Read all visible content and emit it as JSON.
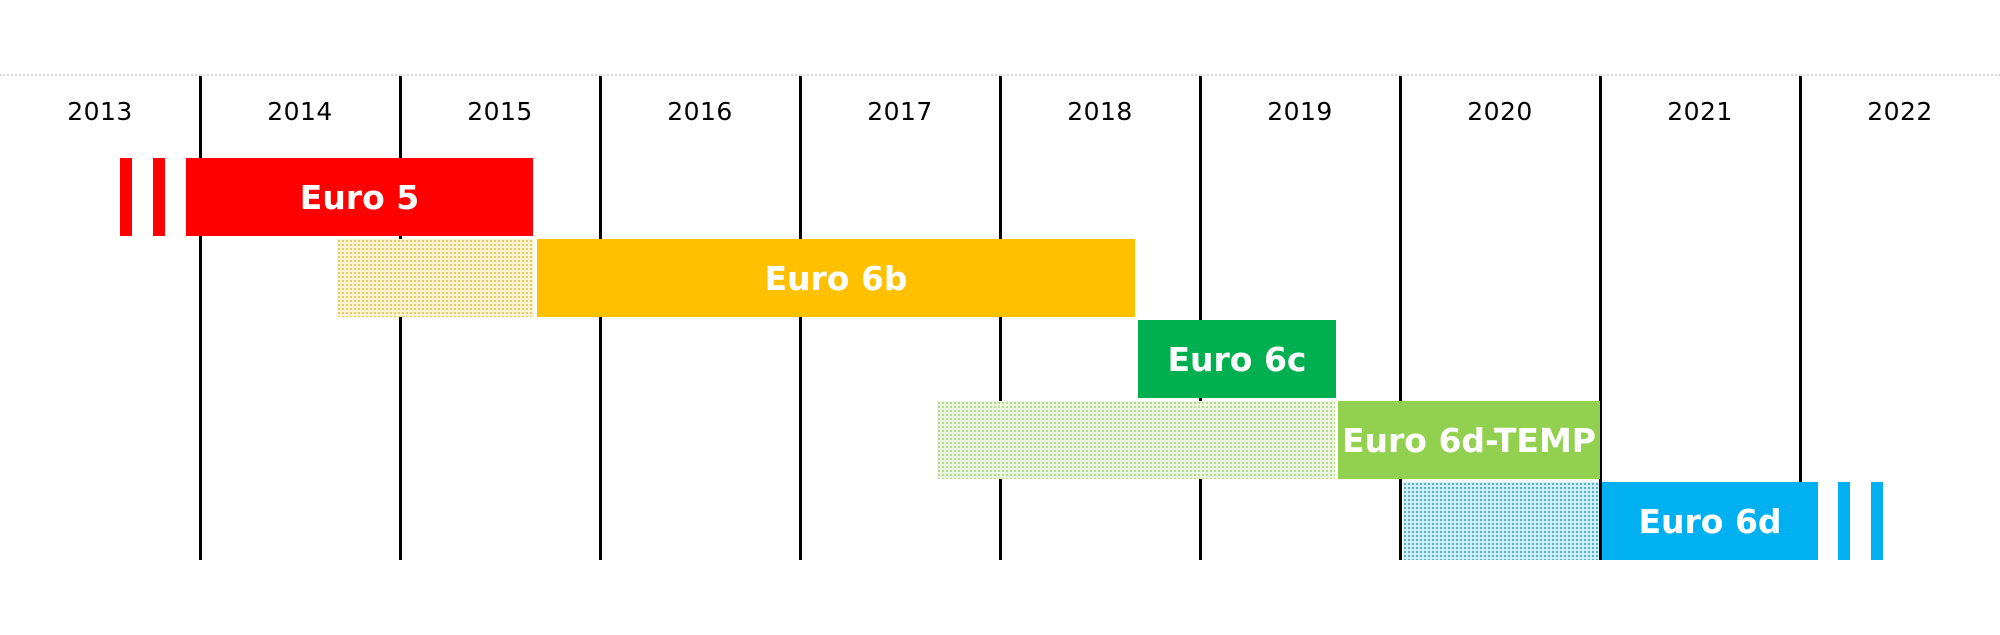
{
  "years": [
    "2013",
    "2014",
    "2015",
    "2016",
    "2017",
    "2018",
    "2019",
    "2020",
    "2021",
    "2022"
  ],
  "standards": [
    {
      "label": "Euro 5",
      "color": "#ff0000"
    },
    {
      "label": "Euro 6b",
      "color": "#ffc000"
    },
    {
      "label": "Euro 6c",
      "color": "#00b050"
    },
    {
      "label": "Euro 6d-TEMP",
      "color": "#92d050"
    },
    {
      "label": "Euro 6d",
      "color": "#00b0f0"
    }
  ]
}
